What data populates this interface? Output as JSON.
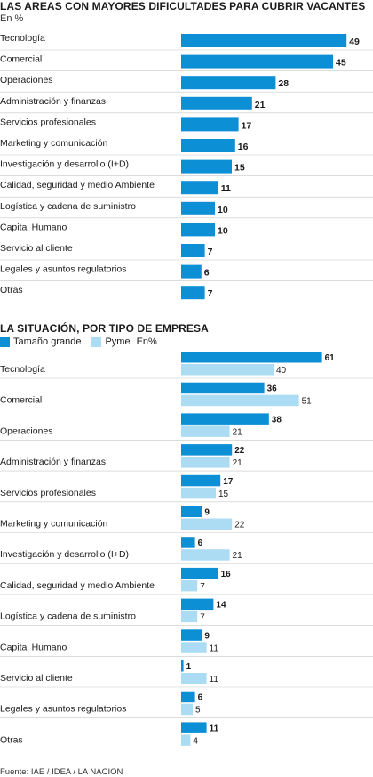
{
  "colors": {
    "primary": "#0d8fd6",
    "secondary": "#acdcf4",
    "separator": "#c8c8c8",
    "text": "#1a1a1a"
  },
  "chart_data": [
    {
      "type": "bar",
      "orientation": "horizontal",
      "title": "LAS AREAS CON MAYORES DIFICULTADES PARA CUBRIR VACANTES",
      "subtitle": "En %",
      "categories": [
        "Tecnología",
        "Comercial",
        "Operaciones",
        "Administración y finanzas",
        "Servicios profesionales",
        "Marketing y comunicación",
        "Investigación y desarrollo (I+D)",
        "Calidad, seguridad y medio Ambiente",
        "Logística y cadena de suministro",
        "Capital Humano",
        "Servicio al cliente",
        "Legales y asuntos regulatorios",
        "Otras"
      ],
      "values": [
        49,
        45,
        28,
        21,
        17,
        16,
        15,
        11,
        10,
        10,
        7,
        6,
        7
      ],
      "grid": false
    },
    {
      "type": "bar",
      "orientation": "horizontal",
      "title": "LA SITUACIÓN, POR TIPO DE EMPRESA",
      "legend_unit": "En%",
      "legend_position": "top-left",
      "categories": [
        "Tecnología",
        "Comercial",
        "Operaciones",
        "Administración y finanzas",
        "Servicios profesionales",
        "Marketing y comunicación",
        "Investigación y desarrollo (I+D)",
        "Calidad, seguridad y medio Ambiente",
        "Logística y cadena de suministro",
        "Capital Humano",
        "Servicio al cliente",
        "Legales y asuntos regulatorios",
        "Otras"
      ],
      "series": [
        {
          "name": "Tamaño grande",
          "values": [
            61,
            36,
            38,
            22,
            17,
            9,
            6,
            16,
            14,
            9,
            1,
            6,
            11
          ]
        },
        {
          "name": "Pyme",
          "values": [
            40,
            51,
            21,
            21,
            15,
            22,
            21,
            7,
            7,
            11,
            11,
            5,
            4
          ]
        }
      ],
      "grid": false
    }
  ],
  "source": "Fuente: IAE / IDEA / LA NACION"
}
